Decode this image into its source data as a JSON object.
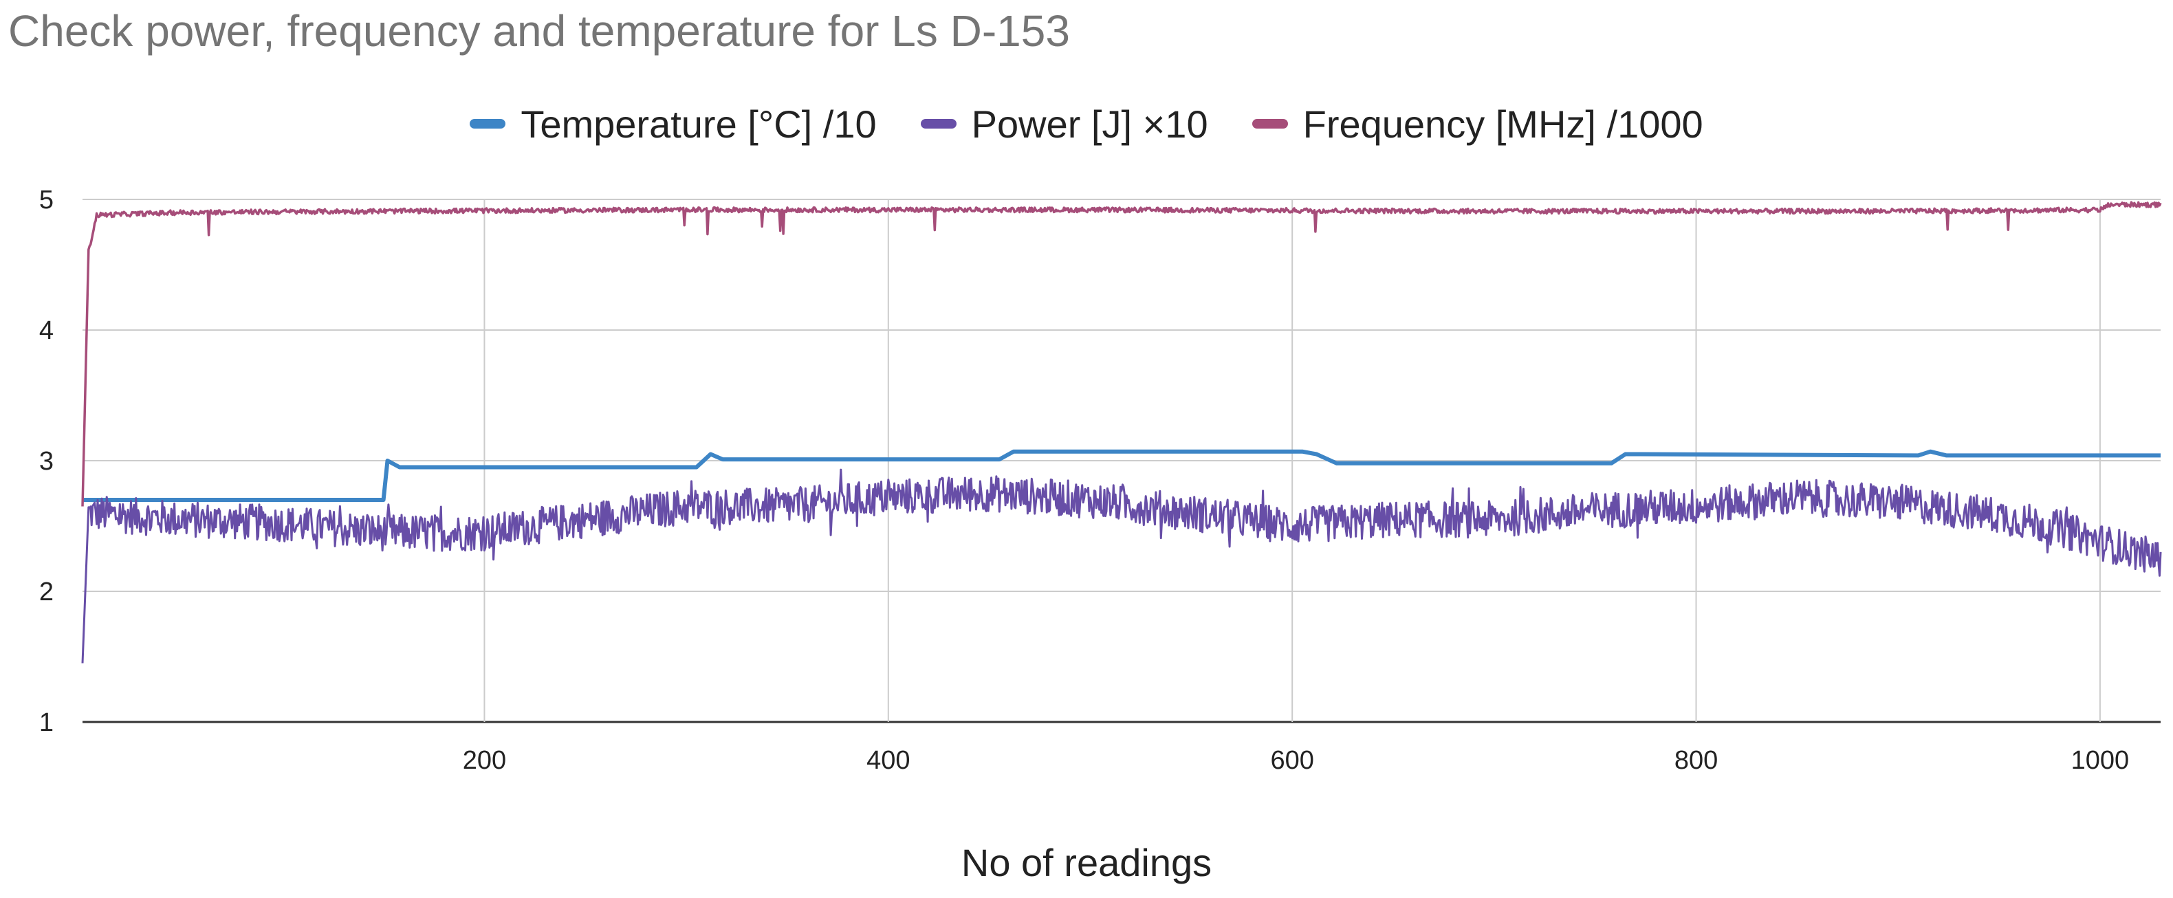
{
  "chart_data": {
    "type": "line",
    "title": "Check power, frequency and temperature for Ls D-153",
    "xlabel": "No of readings",
    "ylabel": "",
    "xlim": [
      1,
      1030
    ],
    "ylim": [
      1,
      5
    ],
    "x_ticks": [
      200,
      400,
      600,
      800,
      1000
    ],
    "y_ticks": [
      1,
      2,
      3,
      4,
      5
    ],
    "grid": true,
    "legend_position": "top",
    "series": [
      {
        "name": "Temperature [°C] /10",
        "color": "#3d85c6",
        "style": "step",
        "points": [
          [
            1,
            2.7
          ],
          [
            150,
            2.7
          ],
          [
            152,
            3.0
          ],
          [
            158,
            2.95
          ],
          [
            305,
            2.95
          ],
          [
            312,
            3.05
          ],
          [
            318,
            3.01
          ],
          [
            455,
            3.01
          ],
          [
            462,
            3.07
          ],
          [
            605,
            3.07
          ],
          [
            612,
            3.05
          ],
          [
            622,
            2.98
          ],
          [
            758,
            2.98
          ],
          [
            765,
            3.05
          ],
          [
            772,
            3.05
          ],
          [
            910,
            3.04
          ],
          [
            916,
            3.07
          ],
          [
            924,
            3.04
          ],
          [
            1030,
            3.04
          ]
        ]
      },
      {
        "name": "Power [J] ×10",
        "color": "#674ea7",
        "style": "noisy",
        "points": [
          [
            1,
            1.45
          ],
          [
            4,
            2.6
          ],
          [
            50,
            2.55
          ],
          [
            100,
            2.52
          ],
          [
            150,
            2.45
          ],
          [
            200,
            2.45
          ],
          [
            250,
            2.55
          ],
          [
            300,
            2.65
          ],
          [
            350,
            2.65
          ],
          [
            400,
            2.72
          ],
          [
            450,
            2.75
          ],
          [
            500,
            2.7
          ],
          [
            550,
            2.6
          ],
          [
            600,
            2.5
          ],
          [
            650,
            2.55
          ],
          [
            700,
            2.55
          ],
          [
            750,
            2.62
          ],
          [
            800,
            2.65
          ],
          [
            850,
            2.72
          ],
          [
            900,
            2.68
          ],
          [
            950,
            2.58
          ],
          [
            980,
            2.48
          ],
          [
            1000,
            2.38
          ],
          [
            1030,
            2.25
          ]
        ]
      },
      {
        "name": "Frequency [MHz] /1000",
        "color": "#a64d79",
        "style": "noisy-top",
        "points": [
          [
            1,
            2.65
          ],
          [
            4,
            4.6
          ],
          [
            8,
            4.88
          ],
          [
            50,
            4.9
          ],
          [
            150,
            4.91
          ],
          [
            300,
            4.92
          ],
          [
            500,
            4.92
          ],
          [
            700,
            4.91
          ],
          [
            900,
            4.91
          ],
          [
            1000,
            4.92
          ],
          [
            1005,
            4.96
          ],
          [
            1030,
            4.96
          ]
        ]
      }
    ]
  }
}
